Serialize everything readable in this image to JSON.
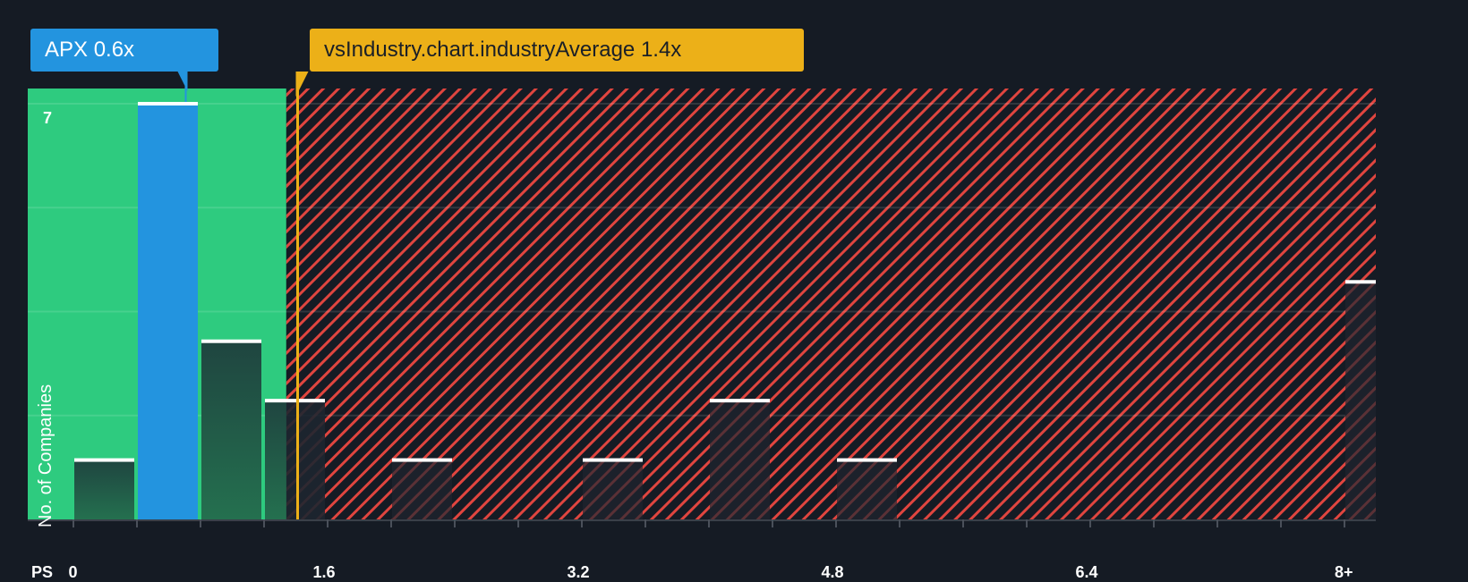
{
  "chart_data": {
    "type": "bar",
    "title": "",
    "xlabel": "PS",
    "ylabel": "No. of Companies",
    "x_tick_labels": [
      "0",
      "1.6",
      "3.2",
      "4.8",
      "6.4",
      "8+"
    ],
    "bin_width": 0.4,
    "categories": [
      "0-0.4",
      "0.4-0.8",
      "0.8-1.2",
      "1.2-1.6",
      "1.6-2.0",
      "2.0-2.4",
      "2.4-2.8",
      "2.8-3.2",
      "3.2-3.6",
      "3.6-4.0",
      "4.0-4.4",
      "4.4-4.8",
      "4.8-5.2",
      "5.2-5.6",
      "5.6-6.0",
      "6.0-6.4",
      "6.4-6.8",
      "6.8-7.2",
      "7.2-7.6",
      "7.6-8.0",
      "8+"
    ],
    "values": [
      1,
      7,
      3,
      2,
      0,
      1,
      0,
      0,
      1,
      0,
      2,
      0,
      1,
      0,
      0,
      0,
      0,
      0,
      0,
      0,
      4
    ],
    "highlight_index": 1,
    "y_tick_labels": [
      "7"
    ],
    "ylim": [
      0,
      7.25
    ],
    "gridlines": [
      1.75,
      3.5,
      5.25,
      7
    ],
    "grid": true,
    "annotations": {
      "company": {
        "ticker": "APX",
        "value": 0.6,
        "label": "APX 0.6x"
      },
      "industry_average": {
        "value": 1.4,
        "label": "vsIndustry.chart.industryAverage 1.4x"
      }
    },
    "regions": {
      "undervalued_end": 1.34,
      "undervalued_color": "#2ecb7f",
      "overvalued_color": "#e0453f"
    },
    "colors": {
      "background": "#151b24",
      "company_bar": "#2394df",
      "industry_line": "#ecb018",
      "bar_cap": "#ffffff"
    }
  },
  "labels": {
    "company_callout": "APX 0.6x",
    "industry_callout": "vsIndustry.chart.industryAverage 1.4x",
    "x_axis_title": "PS",
    "y_axis_title": "No. of Companies",
    "y_max_label": "7"
  }
}
